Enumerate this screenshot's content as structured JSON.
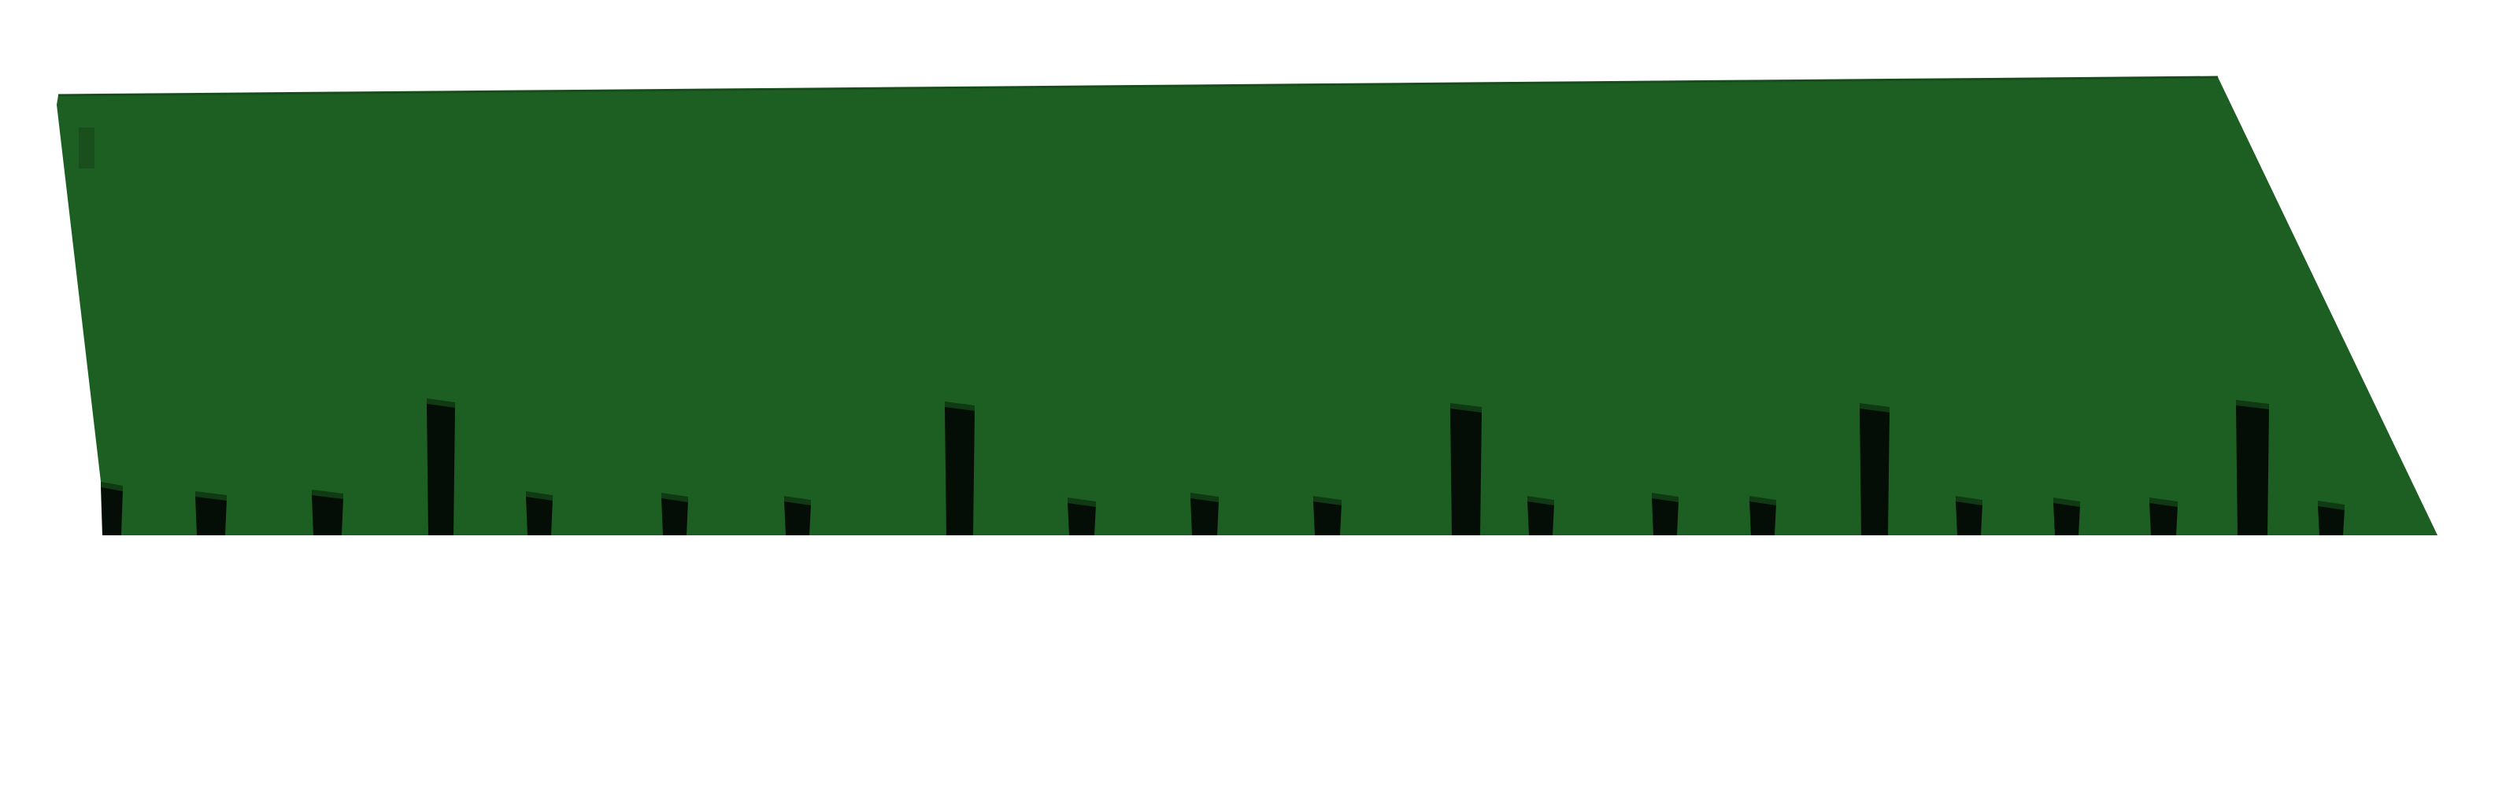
{
  "scene": {
    "background_color": "#ffffff",
    "panel_color": "#1d5e22",
    "panel_edge_color": "#174d1b",
    "post_color": "#050e06",
    "post_cap_color": "#103a14",
    "post_count": 22,
    "tall_post_count": 5
  }
}
